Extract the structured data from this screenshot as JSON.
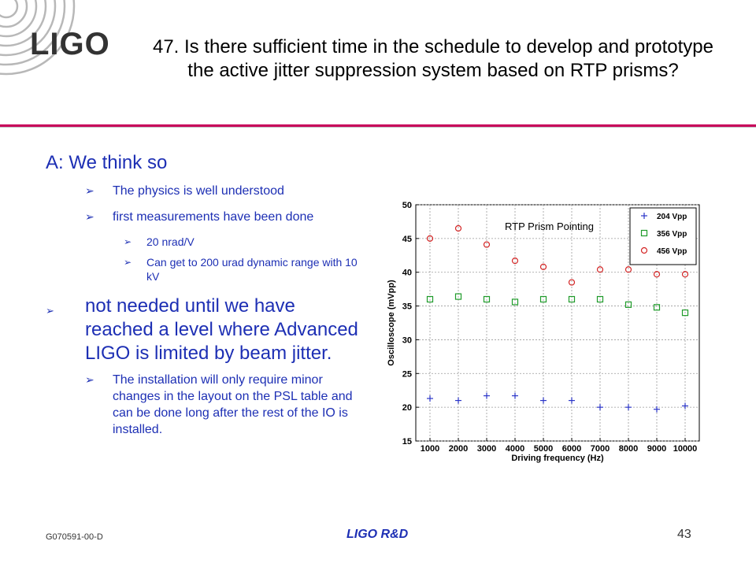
{
  "header": {
    "logo_text": "LIGO",
    "title": "47. Is there sufficient time in the schedule to develop and prototype the active jitter suppression system based on RTP prisms?"
  },
  "content": {
    "answer": "A: We think so",
    "bullet_glyph": "➢",
    "b1": "The physics is well understood",
    "b2": "first measurements have been done",
    "b2_sub1": "20 nrad/V",
    "b2_sub2": "Can get to 200 urad dynamic range with 10 kV",
    "b3": "not needed until we have reached a level where Advanced LIGO is limited by beam jitter.",
    "b3_sub1": "The installation will only require minor changes in the layout on the PSL table and can be done long after the rest of the IO is installed."
  },
  "footer": {
    "doc_id": "G070591-00-D",
    "center": "LIGO R&D",
    "page": "43"
  },
  "chart_data": {
    "type": "scatter",
    "title": "RTP Prism Pointing",
    "xlabel": "Driving frequency (Hz)",
    "ylabel": "Oscilloscope (mVpp)",
    "categories": [
      "1000",
      "2000",
      "3000",
      "4000",
      "5000",
      "6000",
      "7000",
      "8000",
      "9000",
      "10000"
    ],
    "ylim": [
      15,
      50
    ],
    "yticks": [
      "15",
      "20",
      "25",
      "30",
      "35",
      "40",
      "45",
      "50"
    ],
    "grid": true,
    "legend_position": "top-right",
    "series": [
      {
        "name": "204 Vpp",
        "marker": "plus",
        "color": "#2b35c8",
        "values": [
          21.3,
          21.0,
          21.7,
          21.7,
          21.0,
          21.0,
          20.0,
          20.0,
          19.7,
          20.2
        ]
      },
      {
        "name": "356 Vpp",
        "marker": "square",
        "color": "#1f9b2a",
        "values": [
          36.0,
          36.4,
          36.0,
          35.6,
          36.0,
          36.0,
          36.0,
          35.2,
          34.8,
          34.0
        ]
      },
      {
        "name": "456 Vpp",
        "marker": "circle",
        "color": "#d42525",
        "values": [
          45.0,
          46.5,
          44.1,
          41.7,
          40.8,
          38.5,
          40.4,
          40.4,
          39.7,
          39.7
        ]
      }
    ]
  }
}
